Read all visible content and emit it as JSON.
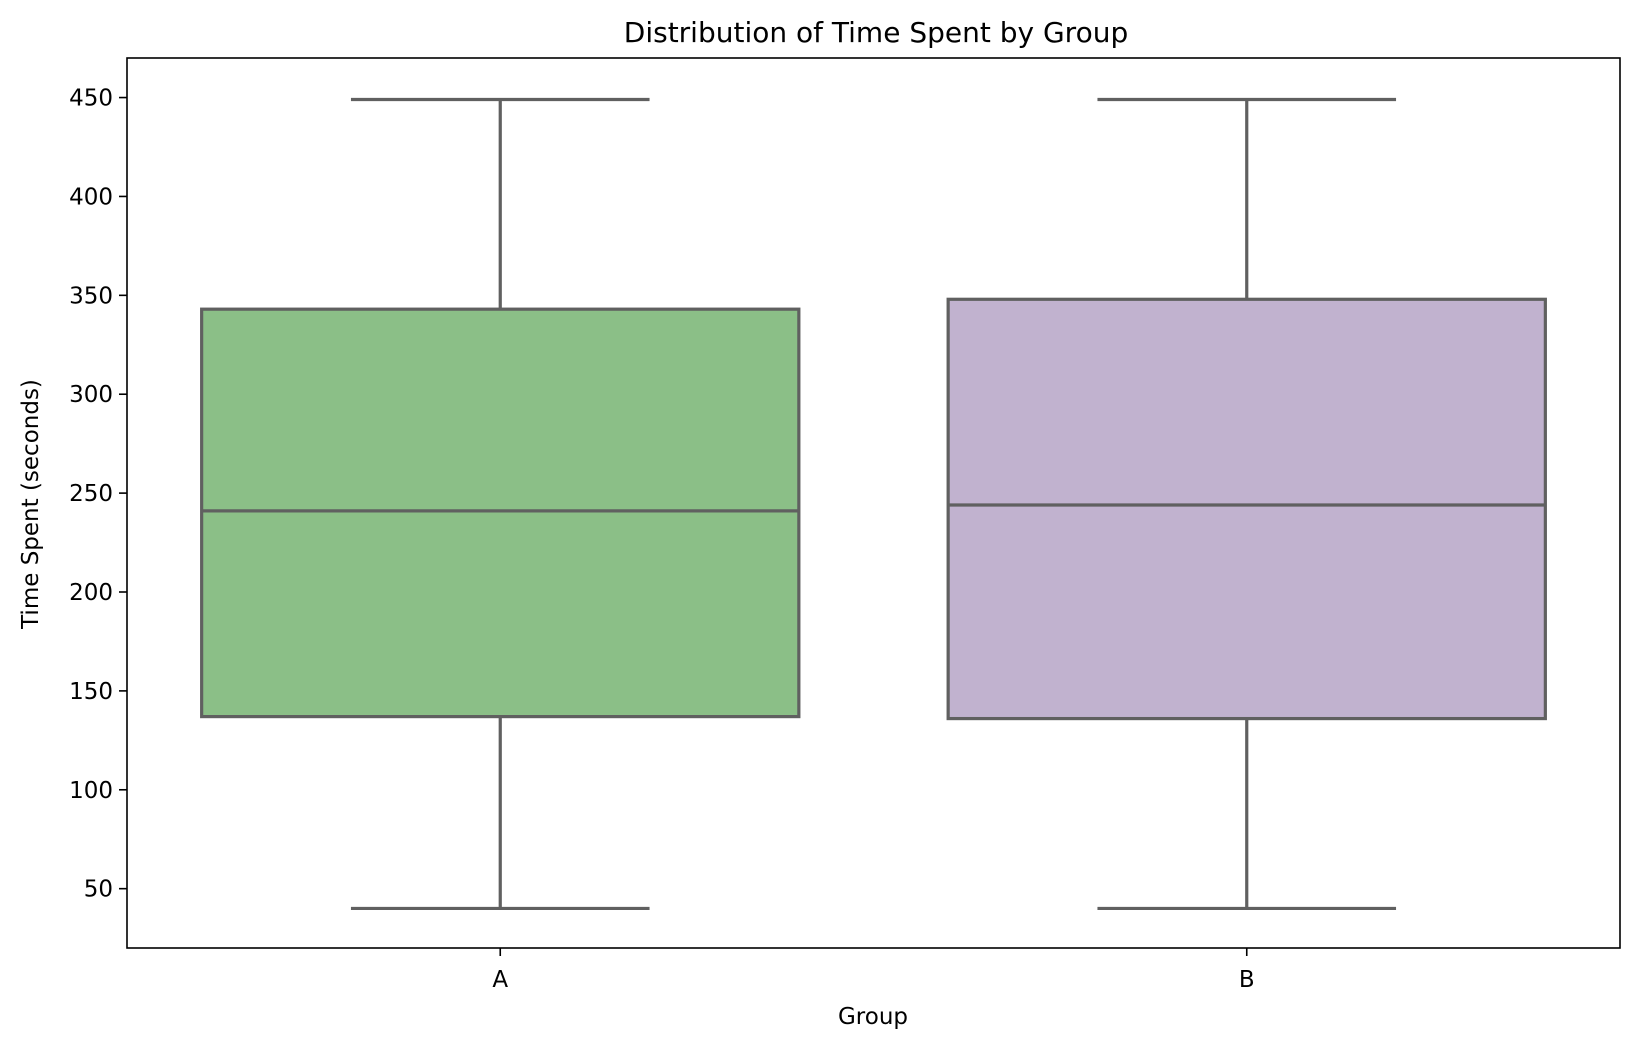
{
  "chart_data": {
    "type": "box",
    "title": "Distribution of Time Spent by Group",
    "xlabel": "Group",
    "ylabel": "Time Spent (seconds)",
    "ylim": [
      20,
      470
    ],
    "yticks": [
      50,
      100,
      150,
      200,
      250,
      300,
      350,
      400,
      450
    ],
    "grid": false,
    "legend": "none",
    "categories": [
      "A",
      "B"
    ],
    "boxes": [
      {
        "group": "A",
        "whisker_low": 40,
        "q1": 137,
        "median": 241,
        "q3": 343,
        "whisker_high": 449,
        "color": "#8bbf87"
      },
      {
        "group": "B",
        "whisker_low": 40,
        "q1": 136,
        "median": 244,
        "q3": 348,
        "whisker_high": 449,
        "color": "#c1b2cf"
      }
    ],
    "line_color": "#606060"
  }
}
